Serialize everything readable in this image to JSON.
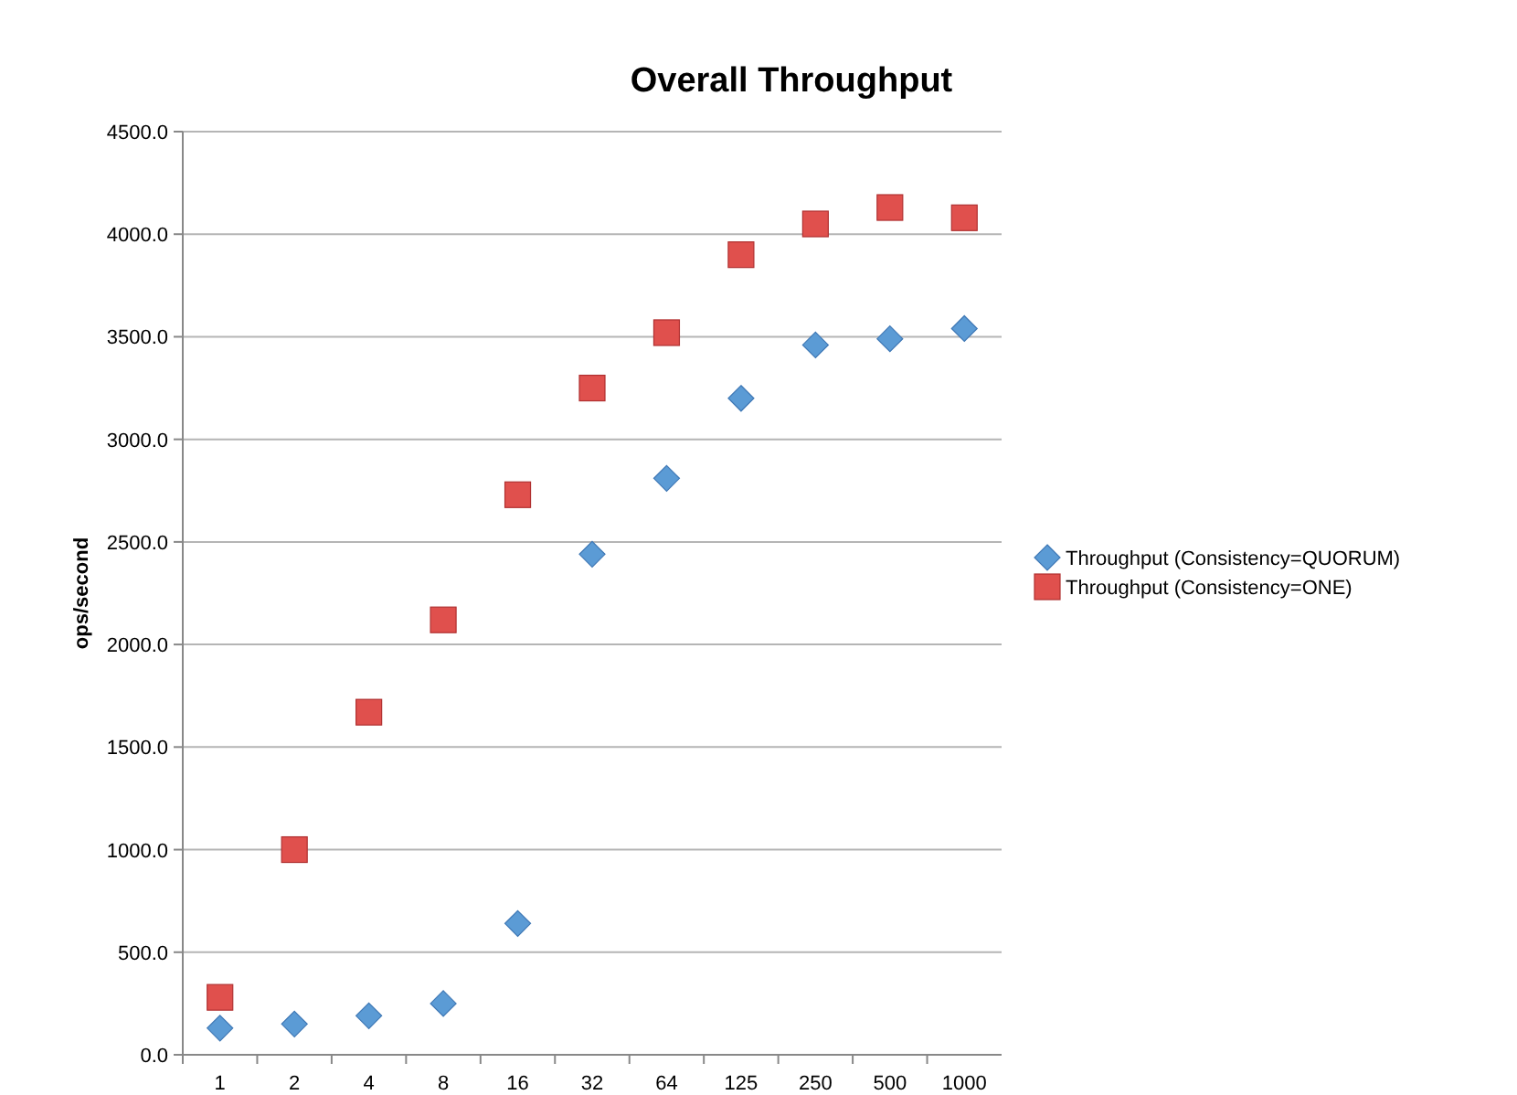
{
  "chart_data": {
    "type": "scatter",
    "title": "Overall Throughput",
    "ylabel": "ops/second",
    "categories": [
      "1",
      "2",
      "4",
      "8",
      "16",
      "32",
      "64",
      "125",
      "250",
      "500",
      "1000"
    ],
    "series": [
      {
        "name": "Throughput (Consistency=QUORUM)",
        "color": "#5b9bd5",
        "marker": "diamond",
        "values": [
          130,
          150,
          190,
          250,
          640,
          2440,
          2810,
          3200,
          3460,
          3490,
          3540
        ]
      },
      {
        "name": "Throughput (Consistency=ONE)",
        "color": "#e0504d",
        "marker": "square",
        "values": [
          280,
          1000,
          1670,
          2120,
          2730,
          3250,
          3520,
          3900,
          4050,
          4130,
          4080
        ]
      }
    ],
    "ylim": [
      0,
      4500
    ],
    "yticks": [
      {
        "value": 0,
        "label": "0.0"
      },
      {
        "value": 500,
        "label": "500.0"
      },
      {
        "value": 1000,
        "label": "1000.0"
      },
      {
        "value": 1500,
        "label": "1500.0"
      },
      {
        "value": 2000,
        "label": "2000.0"
      },
      {
        "value": 2500,
        "label": "2500.0"
      },
      {
        "value": 3000,
        "label": "3000.0"
      },
      {
        "value": 3500,
        "label": "3500.0"
      },
      {
        "value": 4000,
        "label": "4000.0"
      },
      {
        "value": 4500,
        "label": "4500.0"
      }
    ],
    "grid": "y",
    "legend": "right"
  }
}
